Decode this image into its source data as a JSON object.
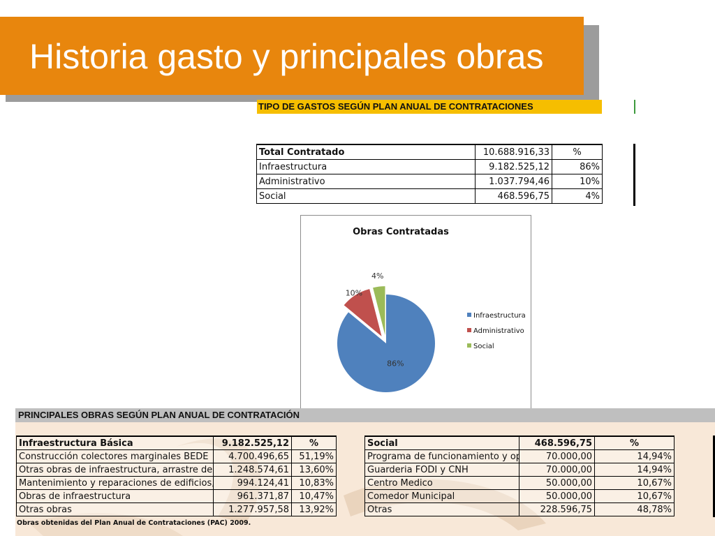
{
  "title": "Historia gasto y principales obras",
  "gastos": {
    "header": "TIPO DE GASTOS SEGÚN PLAN ANUAL DE CONTRATACIONES",
    "rows": [
      {
        "label": "Total Contratado",
        "value": "10.688.916,33",
        "pct": "%"
      },
      {
        "label": "Infraestructura",
        "value": "9.182.525,12",
        "pct": "86%"
      },
      {
        "label": "Administrativo",
        "value": "1.037.794,46",
        "pct": "10%"
      },
      {
        "label": "Social",
        "value": "468.596,75",
        "pct": "4%"
      }
    ]
  },
  "chart_data": {
    "type": "pie",
    "title": "Obras Contratadas",
    "categories": [
      "Infraestructura",
      "Administrativo",
      "Social"
    ],
    "values": [
      86,
      10,
      4
    ],
    "labels": [
      "86%",
      "10%",
      "4%"
    ],
    "colors": [
      "#4f81bd",
      "#c0504d",
      "#9bbb59"
    ],
    "exploded": true,
    "legend": "right"
  },
  "obras": {
    "header": "PRINCIPALES OBRAS SEGÚN PLAN ANUAL DE CONTRATACIÓN",
    "infra": [
      {
        "label": "Infraestructura Básica",
        "value": "9.182.525,12",
        "pct": "%"
      },
      {
        "label": "Construcción colectores marginales BEDE",
        "value": "4.700.496,65",
        "pct": "51,19%"
      },
      {
        "label": "Otras obras de infraestructura, arrastre de obras",
        "value": "1.248.574,61",
        "pct": "13,60%"
      },
      {
        "label": "Mantenimiento y reparaciones de edificios, vías",
        "value": "994.124,41",
        "pct": "10,83%"
      },
      {
        "label": "Obras de infraestructura",
        "value": "961.371,87",
        "pct": "10,47%"
      },
      {
        "label": "Otras obras",
        "value": "1.277.957,58",
        "pct": "13,92%"
      }
    ],
    "social": [
      {
        "label": "Social",
        "value": "468.596,75",
        "pct": "%"
      },
      {
        "label": "Programa de funcionamiento y operación",
        "value": "70.000,00",
        "pct": "14,94%"
      },
      {
        "label": "Guarderia FODI y CNH",
        "value": "70.000,00",
        "pct": "14,94%"
      },
      {
        "label": "Centro Medico",
        "value": "50.000,00",
        "pct": "10,67%"
      },
      {
        "label": "Comedor Municipal",
        "value": "50.000,00",
        "pct": "10,67%"
      },
      {
        "label": "Otras",
        "value": "228.596,75",
        "pct": "48,78%"
      }
    ],
    "footnote": "Obras obtenidas del Plan Anual de Contrataciones (PAC) 2009."
  }
}
